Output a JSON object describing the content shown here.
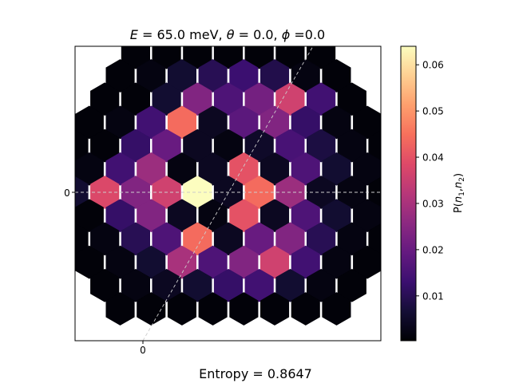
{
  "chart_data": {
    "type": "heatmap",
    "grid": "hexagonal",
    "title_parts": [
      "E",
      " = 65.0 meV, ",
      "θ",
      " = 0.0, ",
      "ϕ",
      " =0.0"
    ],
    "x_tick_label": "0",
    "y_tick_label": "0",
    "colorbar": {
      "label": "P(n1,n2)",
      "colormap": "magma",
      "vmin": 0.0003,
      "vmax": 0.064,
      "ticks": [
        "0.01",
        "0.02",
        "0.03",
        "0.04",
        "0.05",
        "0.06"
      ],
      "tick_values": [
        0.01,
        0.02,
        0.03,
        0.04,
        0.05,
        0.06
      ]
    },
    "guide_lines": [
      "horizontal dashed through center",
      "diagonal dashed through center at 60 degrees"
    ],
    "rows": [
      {
        "row": -6,
        "values": [
          0.001,
          0.001,
          0.001,
          0.001,
          0.001,
          0.001,
          0.001
        ]
      },
      {
        "row": -5,
        "values": [
          0.001,
          0.002,
          0.006,
          0.01,
          0.013,
          0.009,
          0.002,
          0.001
        ]
      },
      {
        "row": -4,
        "values": [
          0.001,
          0.001,
          0.006,
          0.024,
          0.016,
          0.022,
          0.036,
          0.014,
          0.001
        ]
      },
      {
        "row": -3,
        "values": [
          0.001,
          0.002,
          0.014,
          0.044,
          0.004,
          0.018,
          0.024,
          0.012,
          0.002,
          0.001
        ]
      },
      {
        "row": -2,
        "values": [
          0.001,
          0.001,
          0.012,
          0.02,
          0.004,
          0.002,
          0.005,
          0.015,
          0.008,
          0.002,
          0.001
        ]
      },
      {
        "row": -1,
        "values": [
          0.001,
          0.002,
          0.014,
          0.028,
          0.002,
          0.004,
          0.04,
          0.004,
          0.016,
          0.006,
          0.002,
          0.001
        ]
      },
      {
        "row": 0,
        "values": [
          0.001,
          0.006,
          0.038,
          0.024,
          0.036,
          0.064,
          0.004,
          0.044,
          0.028,
          0.004,
          0.002,
          0.001,
          0.001
        ]
      },
      {
        "row": 1,
        "values": [
          0.001,
          0.001,
          0.012,
          0.024,
          0.004,
          0.002,
          0.04,
          0.004,
          0.016,
          0.006,
          0.002,
          0.001
        ]
      },
      {
        "row": 2,
        "values": [
          0.001,
          0.002,
          0.01,
          0.016,
          0.044,
          0.004,
          0.02,
          0.024,
          0.01,
          0.002,
          0.001
        ]
      },
      {
        "row": 3,
        "values": [
          0.001,
          0.002,
          0.006,
          0.03,
          0.016,
          0.024,
          0.036,
          0.014,
          0.002,
          0.001
        ]
      },
      {
        "row": 4,
        "values": [
          0.001,
          0.002,
          0.004,
          0.006,
          0.012,
          0.014,
          0.006,
          0.002,
          0.001
        ]
      },
      {
        "row": 5,
        "values": [
          0.001,
          0.001,
          0.001,
          0.001,
          0.001,
          0.001,
          0.001,
          0.001
        ]
      }
    ]
  },
  "footer": {
    "entropy_label": "Entropy = 0.8647"
  }
}
